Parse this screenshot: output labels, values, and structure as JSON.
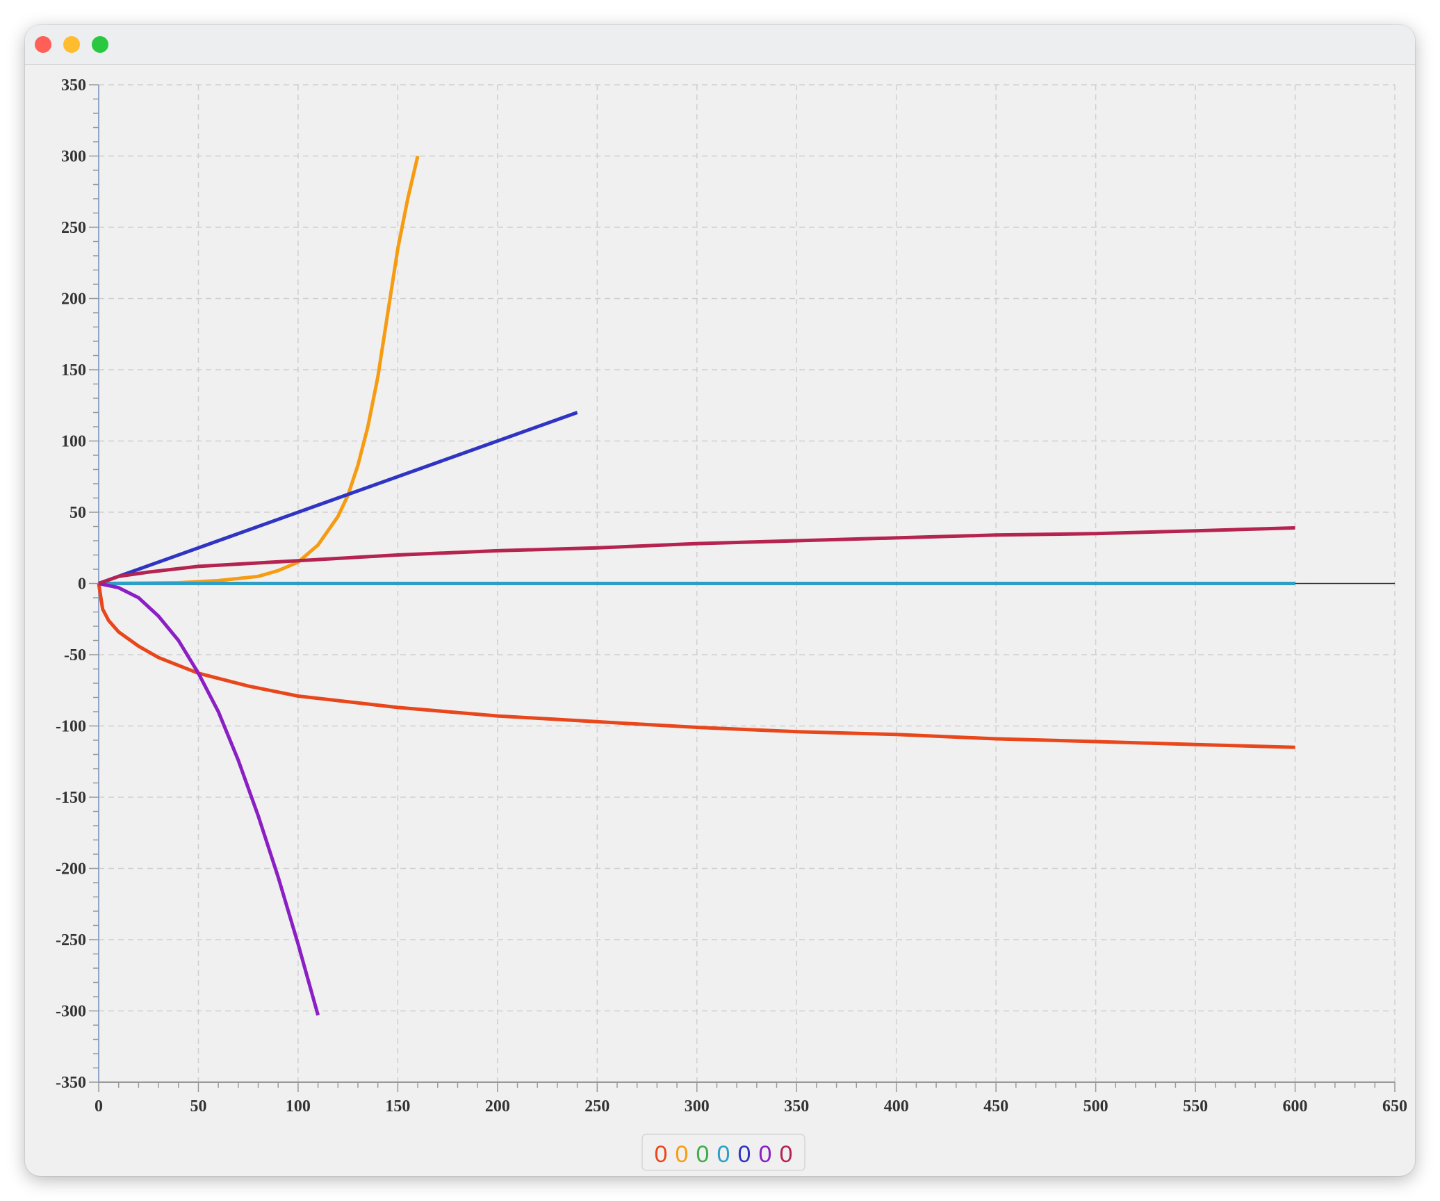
{
  "window": {
    "controls": [
      "close",
      "minimize",
      "zoom"
    ]
  },
  "chart_data": {
    "type": "line",
    "title": "",
    "xlabel": "",
    "ylabel": "",
    "xlim": [
      0,
      650
    ],
    "ylim": [
      -350,
      350
    ],
    "x_ticks": [
      0,
      50,
      100,
      150,
      200,
      250,
      300,
      350,
      400,
      450,
      500,
      550,
      600,
      650
    ],
    "y_ticks": [
      350,
      300,
      250,
      200,
      150,
      100,
      50,
      0,
      -50,
      -100,
      -150,
      -200,
      -250,
      -300,
      -350
    ],
    "grid": true,
    "legend_position": "bottom-center",
    "legend_labels": [
      "0",
      "0",
      "0",
      "0",
      "0",
      "0",
      "0"
    ],
    "series": [
      {
        "color": "#e8471c",
        "x": [
          0,
          2,
          5,
          10,
          20,
          30,
          50,
          75,
          100,
          150,
          200,
          250,
          300,
          350,
          400,
          450,
          500,
          550,
          600
        ],
        "y": [
          0,
          -18,
          -26,
          -34,
          -44,
          -52,
          -63,
          -72,
          -79,
          -87,
          -93,
          -97,
          -101,
          -104,
          -106,
          -109,
          -111,
          -113,
          -115
        ]
      },
      {
        "color": "#f59c12",
        "x": [
          0,
          40,
          60,
          80,
          90,
          100,
          110,
          120,
          125,
          130,
          135,
          140,
          145,
          150,
          155,
          160
        ],
        "y": [
          0,
          0.5,
          2,
          5,
          9,
          15,
          27,
          47,
          62,
          83,
          110,
          145,
          190,
          235,
          270,
          300
        ]
      },
      {
        "color": "#3fae49",
        "x": [
          0,
          100,
          200,
          300,
          400,
          500,
          600
        ],
        "y": [
          0,
          0,
          0,
          0,
          0,
          0,
          0
        ]
      },
      {
        "color": "#2d9fc7",
        "x": [
          0,
          100,
          200,
          300,
          400,
          500,
          600
        ],
        "y": [
          0,
          0,
          0,
          0,
          0,
          0,
          0
        ]
      },
      {
        "color": "#2f35c2",
        "x": [
          0,
          60,
          120,
          180,
          240
        ],
        "y": [
          0,
          30,
          60,
          90,
          120
        ]
      },
      {
        "color": "#8a1fc4",
        "x": [
          0,
          10,
          20,
          30,
          40,
          50,
          60,
          70,
          80,
          90,
          100,
          110
        ],
        "y": [
          0,
          -3,
          -10,
          -23,
          -40,
          -63,
          -90,
          -124,
          -163,
          -206,
          -253,
          -303
        ]
      },
      {
        "color": "#b52350",
        "x": [
          0,
          10,
          25,
          50,
          100,
          150,
          200,
          250,
          300,
          350,
          400,
          450,
          500,
          550,
          600
        ],
        "y": [
          0,
          5,
          8,
          12,
          16,
          20,
          23,
          25,
          28,
          30,
          32,
          34,
          35,
          37,
          39
        ]
      }
    ]
  }
}
